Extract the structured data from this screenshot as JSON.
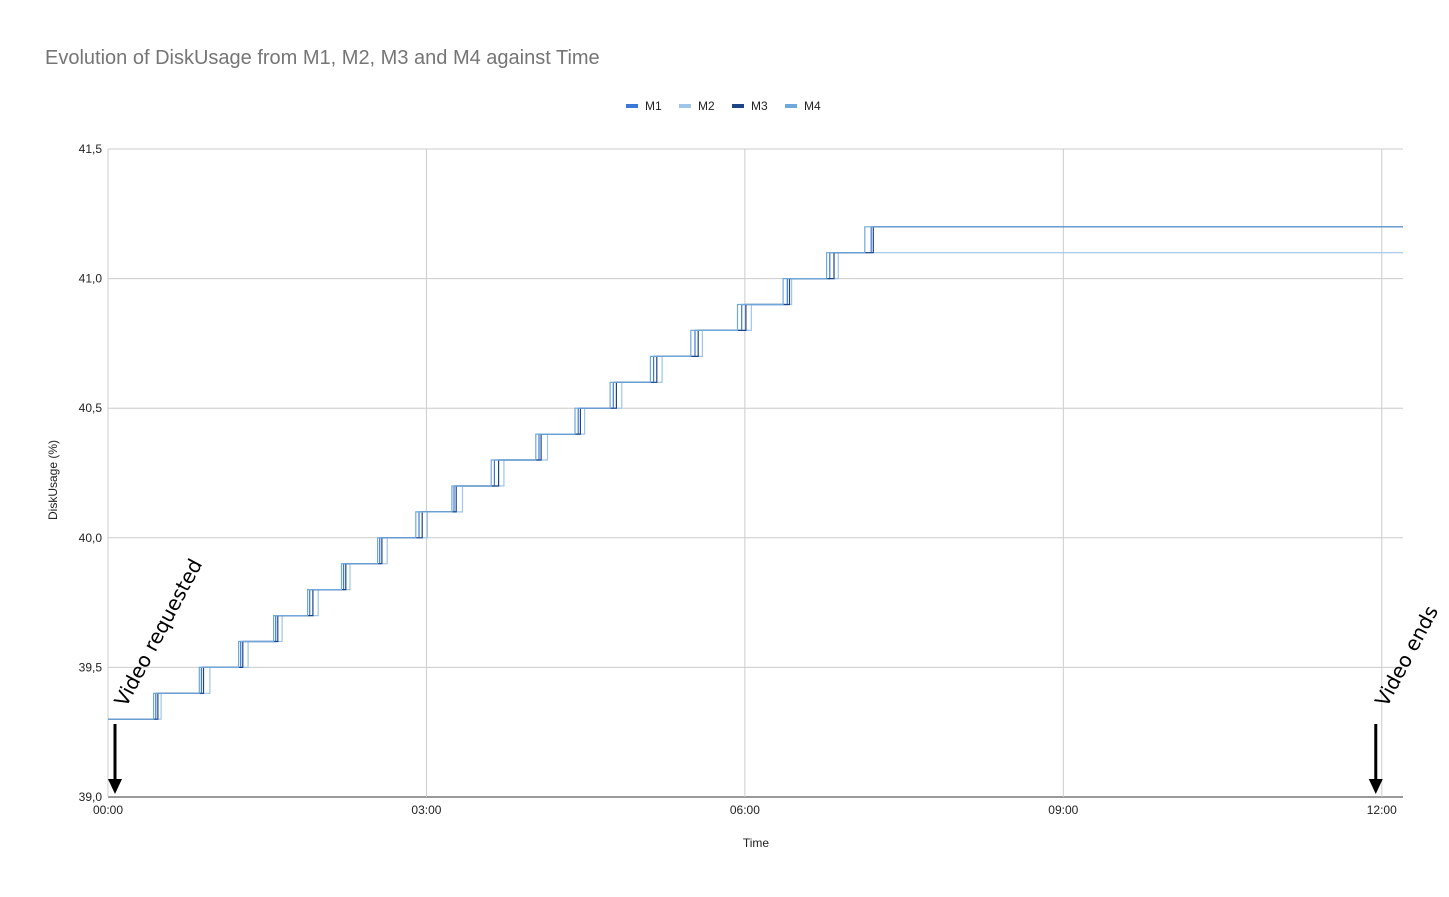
{
  "chart_data": {
    "type": "line",
    "title": "Evolution of DiskUsage from M1, M2, M3 and M4 against Time",
    "xlabel": "Time",
    "ylabel": "DiskUsage (%)",
    "x_ticks": [
      "00:00",
      "03:00",
      "06:00",
      "09:00",
      "12:00"
    ],
    "xlim_hours": [
      0,
      12.2
    ],
    "y_ticks": [
      "39,0",
      "39,5",
      "40,0",
      "40,5",
      "41,0",
      "41,5"
    ],
    "ylim": [
      39.0,
      41.5
    ],
    "grid": true,
    "legend_position": "top",
    "series": [
      {
        "name": "M1",
        "color": "#3c78d8",
        "start": 39.3,
        "step": 0.1,
        "steps": 19,
        "step_times_h": [
          0.45,
          0.88,
          1.25,
          1.58,
          1.9,
          2.22,
          2.56,
          2.93,
          3.26,
          3.64,
          4.06,
          4.43,
          4.76,
          5.14,
          5.53,
          5.97,
          6.4,
          6.8,
          7.19
        ]
      },
      {
        "name": "M2",
        "color": "#9fc5e8",
        "start": 39.3,
        "step": 0.1,
        "steps": 18,
        "step_times_h": [
          0.5,
          0.96,
          1.32,
          1.64,
          1.98,
          2.28,
          2.63,
          3.01,
          3.34,
          3.73,
          4.14,
          4.49,
          4.84,
          5.22,
          5.6,
          6.06,
          6.44,
          6.88
        ]
      },
      {
        "name": "M3",
        "color": "#1c4587",
        "start": 39.3,
        "step": 0.1,
        "steps": 19,
        "step_times_h": [
          0.47,
          0.9,
          1.27,
          1.6,
          1.93,
          2.24,
          2.58,
          2.96,
          3.28,
          3.68,
          4.08,
          4.45,
          4.79,
          5.17,
          5.56,
          6.01,
          6.42,
          6.84,
          7.21
        ]
      },
      {
        "name": "M4",
        "color": "#6fa8dc",
        "start": 39.3,
        "step": 0.1,
        "steps": 19,
        "step_times_h": [
          0.43,
          0.86,
          1.23,
          1.56,
          1.88,
          2.2,
          2.54,
          2.9,
          3.24,
          3.61,
          4.03,
          4.4,
          4.73,
          5.11,
          5.49,
          5.93,
          6.36,
          6.77,
          7.13
        ]
      }
    ],
    "annotations": [
      {
        "text": "Video requested",
        "at": "00:00"
      },
      {
        "text": "Video ends",
        "at": "12:00"
      }
    ]
  }
}
